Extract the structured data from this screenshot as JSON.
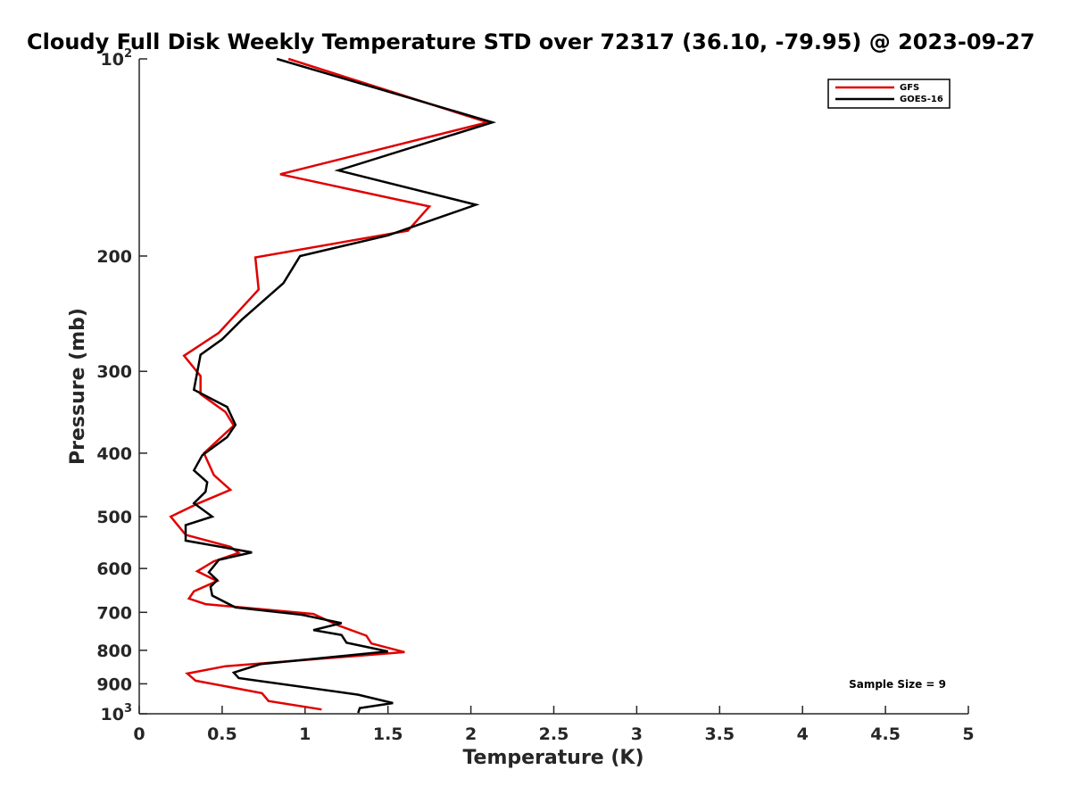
{
  "chart_data": {
    "type": "line",
    "title": "Cloudy Full Disk Weekly Temperature STD over 72317 (36.10, -79.95) @ 2023-09-27",
    "xlabel": "Temperature (K)",
    "ylabel": "Pressure (mb)",
    "xlim": [
      0,
      5
    ],
    "ylim": [
      100,
      1000
    ],
    "yscale": "log",
    "yreversed": true,
    "xticks": [
      "0",
      "0.5",
      "1",
      "1.5",
      "2",
      "2.5",
      "3",
      "3.5",
      "4",
      "4.5",
      "5"
    ],
    "yticks": [
      {
        "value": 100,
        "label": "10",
        "sup": "2"
      },
      {
        "value": 200,
        "label": "200",
        "sup": ""
      },
      {
        "value": 300,
        "label": "300",
        "sup": ""
      },
      {
        "value": 400,
        "label": "400",
        "sup": ""
      },
      {
        "value": 500,
        "label": "500",
        "sup": ""
      },
      {
        "value": 600,
        "label": "600",
        "sup": ""
      },
      {
        "value": 700,
        "label": "700",
        "sup": ""
      },
      {
        "value": 800,
        "label": "800",
        "sup": ""
      },
      {
        "value": 900,
        "label": "900",
        "sup": ""
      },
      {
        "value": 1000,
        "label": "10",
        "sup": "3"
      }
    ],
    "legend_position": "top-right",
    "annotation": "Sample Size = 9",
    "series": [
      {
        "name": "GFS",
        "color": "#e00000",
        "points": [
          [
            0.9,
            100
          ],
          [
            2.1,
            125
          ],
          [
            0.85,
            150
          ],
          [
            1.75,
            168
          ],
          [
            1.62,
            183
          ],
          [
            0.7,
            201
          ],
          [
            0.72,
            225
          ],
          [
            0.48,
            262
          ],
          [
            0.27,
            284
          ],
          [
            0.37,
            305
          ],
          [
            0.37,
            325
          ],
          [
            0.52,
            346
          ],
          [
            0.57,
            363
          ],
          [
            0.5,
            377
          ],
          [
            0.39,
            400
          ],
          [
            0.45,
            432
          ],
          [
            0.55,
            455
          ],
          [
            0.35,
            478
          ],
          [
            0.19,
            500
          ],
          [
            0.28,
            533
          ],
          [
            0.55,
            556
          ],
          [
            0.6,
            568
          ],
          [
            0.45,
            585
          ],
          [
            0.35,
            606
          ],
          [
            0.47,
            627
          ],
          [
            0.33,
            650
          ],
          [
            0.3,
            667
          ],
          [
            0.4,
            680
          ],
          [
            1.05,
            704
          ],
          [
            1.2,
            733
          ],
          [
            1.37,
            760
          ],
          [
            1.4,
            781
          ],
          [
            1.6,
            805
          ],
          [
            0.52,
            846
          ],
          [
            0.29,
            868
          ],
          [
            0.34,
            890
          ],
          [
            0.74,
            930
          ],
          [
            0.78,
            956
          ],
          [
            1.1,
            985
          ]
        ]
      },
      {
        "name": "GOES-16",
        "color": "#000000",
        "points": [
          [
            0.83,
            100
          ],
          [
            2.13,
            125
          ],
          [
            1.2,
            148
          ],
          [
            2.03,
            167
          ],
          [
            1.5,
            186
          ],
          [
            0.97,
            200
          ],
          [
            0.87,
            220
          ],
          [
            0.62,
            250
          ],
          [
            0.5,
            268
          ],
          [
            0.37,
            283
          ],
          [
            0.34,
            310
          ],
          [
            0.33,
            320
          ],
          [
            0.53,
            340
          ],
          [
            0.58,
            362
          ],
          [
            0.53,
            378
          ],
          [
            0.38,
            403
          ],
          [
            0.33,
            425
          ],
          [
            0.41,
            443
          ],
          [
            0.4,
            458
          ],
          [
            0.33,
            477
          ],
          [
            0.44,
            500
          ],
          [
            0.28,
            515
          ],
          [
            0.28,
            544
          ],
          [
            0.68,
            567
          ],
          [
            0.48,
            582
          ],
          [
            0.42,
            608
          ],
          [
            0.47,
            625
          ],
          [
            0.43,
            640
          ],
          [
            0.44,
            660
          ],
          [
            0.58,
            688
          ],
          [
            0.98,
            706
          ],
          [
            1.22,
            727
          ],
          [
            1.05,
            745
          ],
          [
            1.22,
            758
          ],
          [
            1.25,
            779
          ],
          [
            1.5,
            803
          ],
          [
            0.73,
            840
          ],
          [
            0.57,
            865
          ],
          [
            0.6,
            882
          ],
          [
            1.32,
            935
          ],
          [
            1.53,
            963
          ],
          [
            1.33,
            980
          ],
          [
            1.32,
            997
          ]
        ]
      }
    ]
  }
}
